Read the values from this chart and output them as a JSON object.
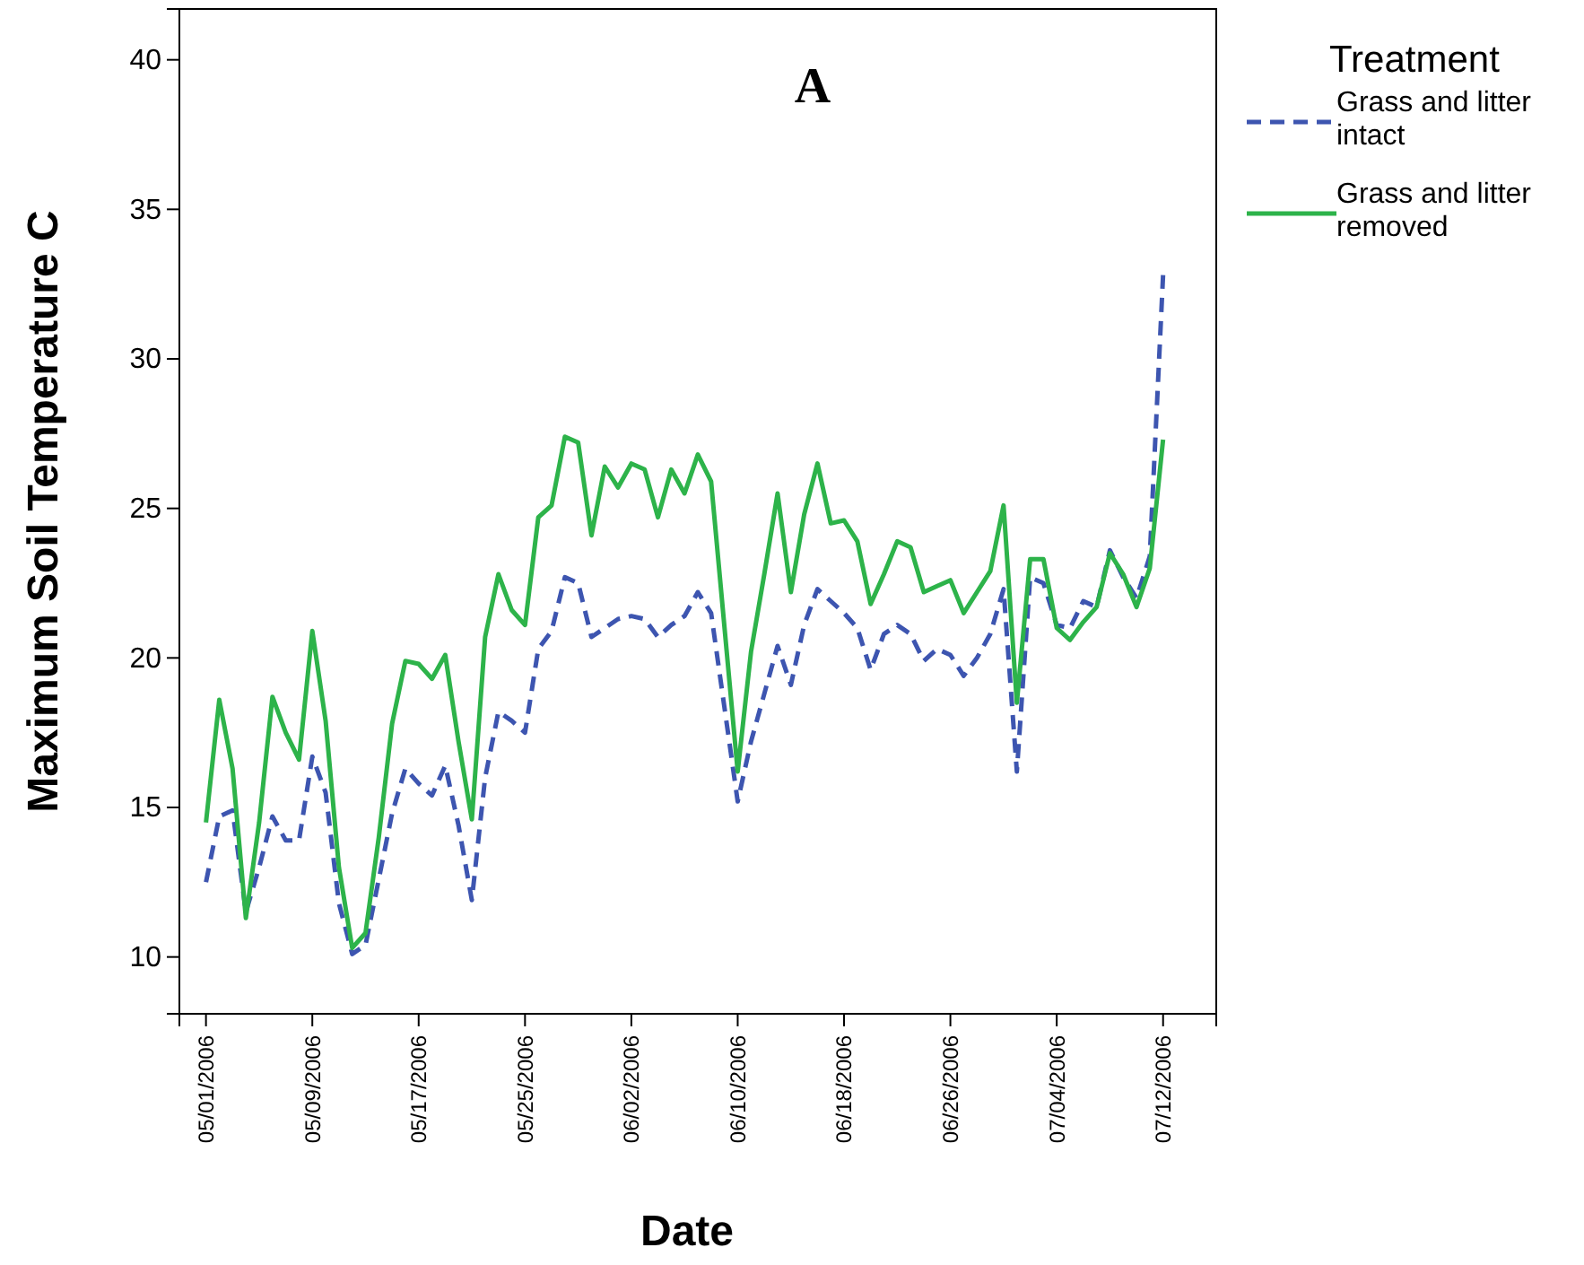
{
  "chart_data": {
    "type": "line",
    "xlabel": "Date",
    "ylabel": "Maximum Soil Temperature C",
    "legend_title": "Treatment",
    "legend": "top right",
    "grid": false,
    "annotations": [
      "A"
    ],
    "xlim": [
      "2006-04-29",
      "2006-07-16"
    ],
    "ylim": [
      8.1,
      41.7
    ],
    "yticks": [
      10,
      15,
      20,
      25,
      30,
      35,
      40
    ],
    "xticks": [
      {
        "value": "2006-05-01",
        "label": "05/01/2006"
      },
      {
        "value": "2006-05-09",
        "label": "05/09/2006"
      },
      {
        "value": "2006-05-17",
        "label": "05/17/2006"
      },
      {
        "value": "2006-05-25",
        "label": "05/25/2006"
      },
      {
        "value": "2006-06-02",
        "label": "06/02/2006"
      },
      {
        "value": "2006-06-10",
        "label": "06/10/2006"
      },
      {
        "value": "2006-06-18",
        "label": "06/18/2006"
      },
      {
        "value": "2006-06-26",
        "label": "06/26/2006"
      },
      {
        "value": "2006-07-04",
        "label": "07/04/2006"
      },
      {
        "value": "2006-07-12",
        "label": "07/12/2006"
      }
    ],
    "x": [
      "2006-05-01",
      "2006-05-02",
      "2006-05-03",
      "2006-05-04",
      "2006-05-05",
      "2006-05-06",
      "2006-05-07",
      "2006-05-08",
      "2006-05-09",
      "2006-05-10",
      "2006-05-11",
      "2006-05-12",
      "2006-05-13",
      "2006-05-14",
      "2006-05-15",
      "2006-05-16",
      "2006-05-17",
      "2006-05-18",
      "2006-05-19",
      "2006-05-20",
      "2006-05-21",
      "2006-05-22",
      "2006-05-23",
      "2006-05-24",
      "2006-05-25",
      "2006-05-26",
      "2006-05-27",
      "2006-05-28",
      "2006-05-29",
      "2006-05-30",
      "2006-05-31",
      "2006-06-01",
      "2006-06-02",
      "2006-06-03",
      "2006-06-04",
      "2006-06-05",
      "2006-06-06",
      "2006-06-07",
      "2006-06-08",
      "2006-06-10",
      "2006-06-11",
      "2006-06-12",
      "2006-06-13",
      "2006-06-14",
      "2006-06-15",
      "2006-06-16",
      "2006-06-17",
      "2006-06-18",
      "2006-06-19",
      "2006-06-20",
      "2006-06-21",
      "2006-06-22",
      "2006-06-23",
      "2006-06-24",
      "2006-06-25",
      "2006-06-26",
      "2006-06-27",
      "2006-06-28",
      "2006-06-29",
      "2006-06-30",
      "2006-07-01",
      "2006-07-02",
      "2006-07-03",
      "2006-07-04",
      "2006-07-05",
      "2006-07-06",
      "2006-07-07",
      "2006-07-08",
      "2006-07-09",
      "2006-07-10",
      "2006-07-11",
      "2006-07-12"
    ],
    "series": [
      {
        "name": "Grass and litter intact",
        "color": "#3d55b0",
        "line_style": "dashed",
        "values": [
          12.5,
          14.7,
          14.9,
          11.5,
          13.0,
          14.7,
          13.9,
          13.9,
          16.7,
          15.5,
          11.8,
          10.1,
          10.4,
          12.6,
          14.8,
          16.3,
          15.8,
          15.4,
          16.4,
          14.4,
          11.9,
          16.0,
          18.2,
          17.9,
          17.5,
          20.3,
          20.9,
          22.7,
          22.5,
          20.7,
          21.0,
          21.3,
          21.4,
          21.3,
          20.7,
          21.1,
          21.4,
          22.2,
          21.5,
          15.2,
          17.2,
          18.8,
          20.4,
          19.1,
          21.1,
          22.3,
          21.9,
          21.5,
          21.0,
          19.6,
          20.8,
          21.1,
          20.8,
          19.9,
          20.3,
          20.1,
          19.4,
          20.0,
          20.8,
          22.3,
          16.2,
          22.7,
          22.5,
          21.1,
          21.0,
          21.9,
          21.7,
          23.6,
          22.7,
          22.0,
          23.4,
          32.8
        ]
      },
      {
        "name": "Grass and litter removed",
        "color": "#2db34a",
        "line_style": "solid",
        "values": [
          14.5,
          18.6,
          16.3,
          11.3,
          14.5,
          18.7,
          17.5,
          16.6,
          20.9,
          17.9,
          13.0,
          10.3,
          10.8,
          14.0,
          17.8,
          19.9,
          19.8,
          19.3,
          20.1,
          17.2,
          14.6,
          20.7,
          22.8,
          21.6,
          21.1,
          24.7,
          25.1,
          27.4,
          27.2,
          24.1,
          26.4,
          25.7,
          26.5,
          26.3,
          24.7,
          26.3,
          25.5,
          26.8,
          25.9,
          16.2,
          20.2,
          22.8,
          25.5,
          22.2,
          24.8,
          26.5,
          24.5,
          24.6,
          23.9,
          21.8,
          22.8,
          23.9,
          23.7,
          22.2,
          22.4,
          22.6,
          21.5,
          22.2,
          22.9,
          25.1,
          18.5,
          23.3,
          23.3,
          21.0,
          20.6,
          21.2,
          21.7,
          23.5,
          22.8,
          21.7,
          23.0,
          27.3
        ]
      }
    ]
  }
}
